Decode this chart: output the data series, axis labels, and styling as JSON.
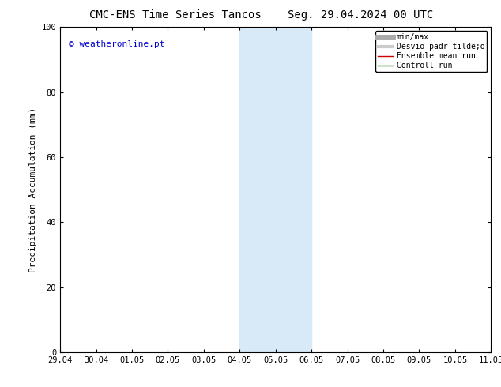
{
  "title_left": "CMC-ENS Time Series Tancos",
  "title_right": "Seg. 29.04.2024 00 UTC",
  "ylabel": "Precipitation Accumulation (mm)",
  "ylim": [
    0,
    100
  ],
  "yticks": [
    0,
    20,
    40,
    60,
    80,
    100
  ],
  "xtick_labels": [
    "29.04",
    "30.04",
    "01.05",
    "02.05",
    "03.05",
    "04.05",
    "05.05",
    "06.05",
    "07.05",
    "08.05",
    "09.05",
    "10.05",
    "11.05"
  ],
  "watermark": "© weatheronline.pt",
  "watermark_color": "#0000cc",
  "bg_color": "#ffffff",
  "plot_bg_color": "#ffffff",
  "shade_regions": [
    {
      "xstart": 5,
      "xend": 7,
      "color": "#d8eaf8"
    }
  ],
  "legend_entries": [
    {
      "label": "min/max",
      "color": "#aaaaaa",
      "linewidth": 5,
      "linestyle": "-"
    },
    {
      "label": "Desvio padr tilde;o",
      "color": "#cccccc",
      "linewidth": 3,
      "linestyle": "-"
    },
    {
      "label": "Ensemble mean run",
      "color": "#cc0000",
      "linewidth": 1,
      "linestyle": "-"
    },
    {
      "label": "Controll run",
      "color": "#006600",
      "linewidth": 1,
      "linestyle": "-"
    }
  ],
  "title_fontsize": 10,
  "axis_label_fontsize": 8,
  "tick_fontsize": 7.5,
  "watermark_fontsize": 8,
  "legend_fontsize": 7
}
